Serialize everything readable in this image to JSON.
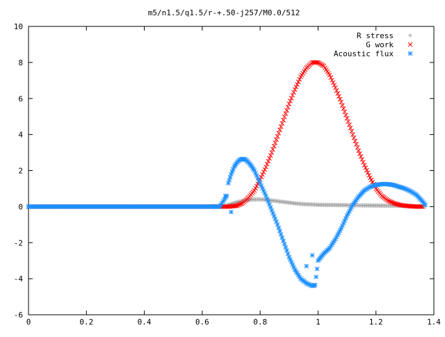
{
  "chart_data": {
    "type": "scatter",
    "title": "m5/n1.5/q1.5/r-+.50-j257/M0.0/512",
    "xlabel": "",
    "ylabel": "",
    "xlim": [
      0,
      1.4
    ],
    "ylim": [
      -6,
      10
    ],
    "x_ticks": [
      0,
      0.2,
      0.4,
      0.6,
      0.8,
      1,
      1.2,
      1.4
    ],
    "x_tick_labels": [
      "0",
      "0.2",
      "0.4",
      "0.6",
      "0.8",
      "1",
      "1.2",
      "1.4"
    ],
    "y_ticks": [
      -6,
      -4,
      -2,
      0,
      2,
      4,
      6,
      8,
      10
    ],
    "y_tick_labels": [
      "-6",
      "-4",
      "-2",
      "0",
      "2",
      "4",
      "6",
      "8",
      "10"
    ],
    "grid": false,
    "legend_position": "top-right",
    "series": [
      {
        "name": "R stress",
        "marker": "plus",
        "color": "#a0a0a0",
        "x": [
          0,
          0.2,
          0.4,
          0.6,
          0.68,
          0.7,
          0.72,
          0.74,
          0.76,
          0.78,
          0.8,
          0.82,
          0.84,
          0.86,
          0.88,
          0.9,
          0.92,
          0.94,
          0.96,
          0.98,
          1.0,
          1.05,
          1.1,
          1.15,
          1.2,
          1.25,
          1.3,
          1.34,
          1.37
        ],
        "y": [
          0,
          0,
          0,
          0,
          0.05,
          0.15,
          0.25,
          0.32,
          0.37,
          0.4,
          0.4,
          0.38,
          0.34,
          0.3,
          0.26,
          0.22,
          0.18,
          0.15,
          0.13,
          0.12,
          0.1,
          0.09,
          0.08,
          0.07,
          0.06,
          0.05,
          0.04,
          0.02,
          0
        ]
      },
      {
        "name": "G work",
        "marker": "cross",
        "color": "#ff0000",
        "x": [
          0,
          0.2,
          0.4,
          0.6,
          0.69,
          0.72,
          0.74,
          0.76,
          0.78,
          0.8,
          0.82,
          0.84,
          0.86,
          0.88,
          0.9,
          0.92,
          0.94,
          0.96,
          0.98,
          1.0,
          1.02,
          1.04,
          1.06,
          1.08,
          1.1,
          1.12,
          1.14,
          1.16,
          1.18,
          1.2,
          1.22,
          1.24,
          1.26,
          1.28,
          1.3,
          1.32,
          1.34,
          1.36
        ],
        "y": [
          0,
          0,
          0,
          0,
          0,
          0.05,
          0.2,
          0.5,
          0.9,
          1.5,
          2.2,
          3.0,
          3.9,
          4.8,
          5.7,
          6.5,
          7.2,
          7.7,
          8.0,
          8.0,
          7.8,
          7.3,
          6.6,
          5.8,
          4.9,
          4.0,
          3.1,
          2.3,
          1.6,
          1.0,
          0.6,
          0.35,
          0.2,
          0.1,
          0.05,
          0.02,
          0,
          0
        ]
      },
      {
        "name": "Acoustic flux",
        "marker": "star",
        "color": "#1e90ff",
        "x": [
          0,
          0.2,
          0.4,
          0.6,
          0.66,
          0.685,
          0.69,
          0.7,
          0.71,
          0.72,
          0.73,
          0.74,
          0.75,
          0.76,
          0.77,
          0.78,
          0.8,
          0.82,
          0.84,
          0.86,
          0.88,
          0.9,
          0.92,
          0.94,
          0.96,
          0.98,
          0.99,
          1.0,
          1.02,
          1.04,
          1.06,
          1.08,
          1.1,
          1.12,
          1.14,
          1.16,
          1.18,
          1.2,
          1.22,
          1.24,
          1.26,
          1.28,
          1.3,
          1.32,
          1.34,
          1.36,
          1.37
        ],
        "y": [
          0,
          0,
          0,
          0,
          0,
          0.6,
          1.3,
          1.8,
          2.2,
          2.45,
          2.6,
          2.65,
          2.6,
          2.45,
          2.25,
          2.0,
          1.3,
          0.6,
          -0.2,
          -1.0,
          -1.9,
          -2.8,
          -3.5,
          -4.0,
          -4.25,
          -4.4,
          -4.35,
          -3.0,
          -2.6,
          -2.3,
          -1.8,
          -1.2,
          -0.5,
          0.1,
          0.55,
          0.9,
          1.1,
          1.2,
          1.25,
          1.25,
          1.2,
          1.1,
          1.0,
          0.85,
          0.65,
          0.3,
          0.1
        ]
      }
    ],
    "extra_points": [
      {
        "series": "Acoustic flux",
        "x": 0.68,
        "y": 0.6
      },
      {
        "series": "Acoustic flux",
        "x": 0.7,
        "y": -0.3
      },
      {
        "series": "Acoustic flux",
        "x": 0.98,
        "y": -2.7
      },
      {
        "series": "Acoustic flux",
        "x": 0.96,
        "y": -3.3
      }
    ]
  }
}
